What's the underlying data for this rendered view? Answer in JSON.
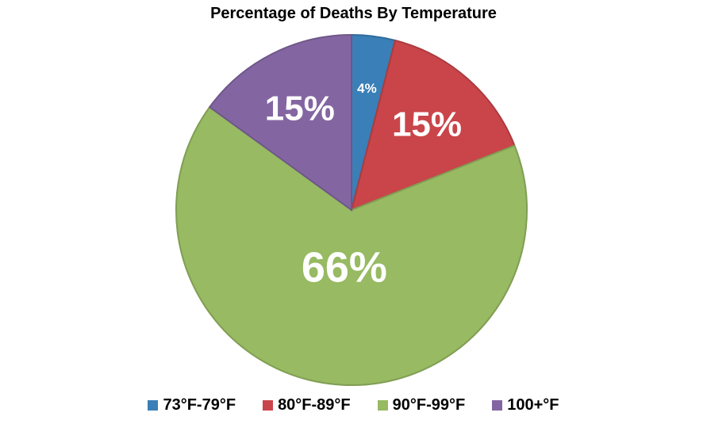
{
  "chart_data": {
    "type": "pie",
    "title": "Percentage of Deaths By Temperature",
    "legend_position": "bottom",
    "slices": [
      {
        "name": "73°F-79°F",
        "value": 4,
        "label": "4%",
        "color": "#3a7fb7"
      },
      {
        "name": "80°F-89°F",
        "value": 15,
        "label": "15%",
        "color": "#c9454a"
      },
      {
        "name": "90°F-99°F",
        "value": 66,
        "label": "66%",
        "color": "#97ba62"
      },
      {
        "name": "100+°F",
        "value": 15,
        "label": "15%",
        "color": "#8366a1"
      }
    ]
  }
}
